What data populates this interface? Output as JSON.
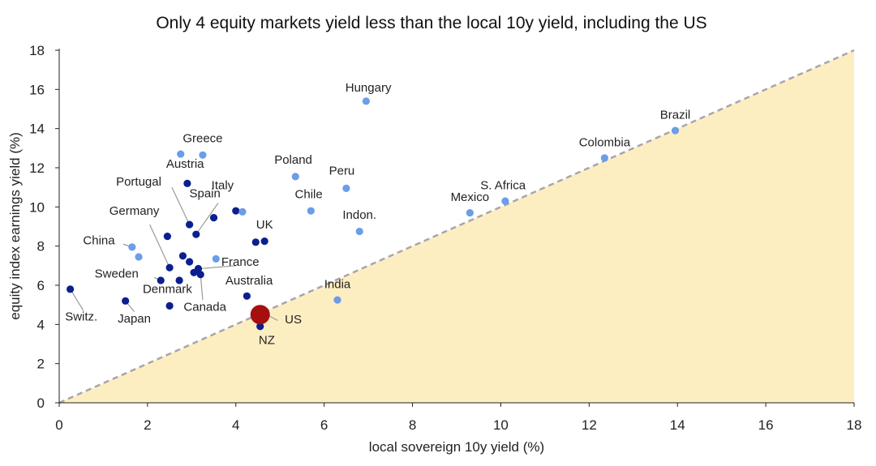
{
  "chart_data": {
    "type": "scatter",
    "title": "Only 4 equity markets yield less than the local 10y yield, including the US",
    "xlabel": "local sovereign 10y yield (%)",
    "ylabel": "equity index earnings yield (%)",
    "xlim": [
      0,
      18
    ],
    "ylim": [
      0,
      18
    ],
    "xticks": [
      "0",
      "2",
      "4",
      "6",
      "8",
      "10",
      "12",
      "14",
      "16",
      "18"
    ],
    "yticks": [
      "0",
      "2",
      "4",
      "6",
      "8",
      "10",
      "12",
      "14",
      "16",
      "18"
    ],
    "grid": false,
    "legend": "none",
    "reference_line": {
      "style": "dashed",
      "color": "#a9a4ae",
      "from": [
        0,
        0
      ],
      "to": [
        18,
        18
      ]
    },
    "shaded_region": {
      "color": "#fdeec2",
      "description": "below the 45-degree line"
    },
    "colors": {
      "developed": "#0b1f8f",
      "emerging": "#6b9de8",
      "highlight": "#a50f0f"
    },
    "points": [
      {
        "x": 0.25,
        "y": 5.8,
        "group": "developed"
      },
      {
        "x": 1.5,
        "y": 5.2,
        "group": "developed"
      },
      {
        "x": 1.65,
        "y": 7.95,
        "group": "emerging"
      },
      {
        "x": 1.8,
        "y": 7.45,
        "group": "emerging"
      },
      {
        "x": 2.3,
        "y": 6.25,
        "group": "developed"
      },
      {
        "x": 2.45,
        "y": 8.5,
        "group": "developed"
      },
      {
        "x": 2.5,
        "y": 6.9,
        "group": "developed"
      },
      {
        "x": 2.5,
        "y": 4.95,
        "group": "developed"
      },
      {
        "x": 2.72,
        "y": 6.25,
        "group": "developed"
      },
      {
        "x": 2.75,
        "y": 12.7,
        "group": "emerging"
      },
      {
        "x": 2.8,
        "y": 7.5,
        "group": "developed"
      },
      {
        "x": 2.9,
        "y": 11.2,
        "group": "developed"
      },
      {
        "x": 2.95,
        "y": 9.1,
        "group": "developed"
      },
      {
        "x": 2.95,
        "y": 7.2,
        "group": "developed"
      },
      {
        "x": 3.05,
        "y": 6.65,
        "group": "developed"
      },
      {
        "x": 3.1,
        "y": 8.6,
        "group": "developed"
      },
      {
        "x": 3.15,
        "y": 6.85,
        "group": "developed"
      },
      {
        "x": 3.2,
        "y": 6.55,
        "group": "developed"
      },
      {
        "x": 3.25,
        "y": 12.65,
        "group": "emerging"
      },
      {
        "x": 3.5,
        "y": 9.45,
        "group": "developed"
      },
      {
        "x": 3.55,
        "y": 7.35,
        "group": "emerging"
      },
      {
        "x": 4.0,
        "y": 9.8,
        "group": "developed"
      },
      {
        "x": 4.15,
        "y": 9.75,
        "group": "emerging"
      },
      {
        "x": 4.25,
        "y": 5.45,
        "group": "developed"
      },
      {
        "x": 4.45,
        "y": 8.2,
        "group": "developed"
      },
      {
        "x": 4.55,
        "y": 3.9,
        "group": "developed"
      },
      {
        "x": 4.55,
        "y": 4.5,
        "group": "highlight"
      },
      {
        "x": 4.65,
        "y": 8.25,
        "group": "developed"
      },
      {
        "x": 5.35,
        "y": 11.55,
        "group": "emerging"
      },
      {
        "x": 5.7,
        "y": 9.8,
        "group": "emerging"
      },
      {
        "x": 6.3,
        "y": 5.25,
        "group": "emerging"
      },
      {
        "x": 6.5,
        "y": 10.95,
        "group": "emerging"
      },
      {
        "x": 6.8,
        "y": 8.75,
        "group": "emerging"
      },
      {
        "x": 6.95,
        "y": 15.4,
        "group": "emerging"
      },
      {
        "x": 9.3,
        "y": 9.7,
        "group": "emerging"
      },
      {
        "x": 10.1,
        "y": 10.3,
        "group": "emerging"
      },
      {
        "x": 12.35,
        "y": 12.5,
        "group": "emerging"
      },
      {
        "x": 13.95,
        "y": 13.9,
        "group": "emerging"
      }
    ],
    "annotations": [
      {
        "text": "Hungary",
        "x": 7.0,
        "y": 15.9
      },
      {
        "text": "Brazil",
        "x": 13.95,
        "y": 14.5
      },
      {
        "text": "Colombia",
        "x": 12.35,
        "y": 13.1
      },
      {
        "text": "Greece",
        "x": 3.25,
        "y": 13.3
      },
      {
        "text": "Austria",
        "x": 2.85,
        "y": 12.0
      },
      {
        "text": "Poland",
        "x": 5.3,
        "y": 12.2
      },
      {
        "text": "Peru",
        "x": 6.4,
        "y": 11.65
      },
      {
        "text": "Portugal",
        "x": 1.8,
        "y": 11.1
      },
      {
        "text": "Italy",
        "x": 3.7,
        "y": 10.9
      },
      {
        "text": "S. Africa",
        "x": 10.05,
        "y": 10.9
      },
      {
        "text": "Spain",
        "x": 3.3,
        "y": 10.5
      },
      {
        "text": "Chile",
        "x": 5.65,
        "y": 10.45
      },
      {
        "text": "Mexico",
        "x": 9.3,
        "y": 10.3
      },
      {
        "text": "Germany",
        "x": 1.7,
        "y": 9.6
      },
      {
        "text": "Indon.",
        "x": 6.8,
        "y": 9.4
      },
      {
        "text": "UK",
        "x": 4.65,
        "y": 8.9
      },
      {
        "text": "China",
        "x": 0.9,
        "y": 8.1
      },
      {
        "text": "France",
        "x": 4.1,
        "y": 7.0
      },
      {
        "text": "Sweden",
        "x": 1.3,
        "y": 6.4
      },
      {
        "text": "Australia",
        "x": 4.3,
        "y": 6.05
      },
      {
        "text": "India",
        "x": 6.3,
        "y": 5.85
      },
      {
        "text": "Denmark",
        "x": 2.45,
        "y": 5.6
      },
      {
        "text": "Canada",
        "x": 3.3,
        "y": 4.7
      },
      {
        "text": "Switz.",
        "x": 0.5,
        "y": 4.2
      },
      {
        "text": "Japan",
        "x": 1.7,
        "y": 4.1
      },
      {
        "text": "US",
        "x": 5.3,
        "y": 4.05
      },
      {
        "text": "NZ",
        "x": 4.7,
        "y": 3.0
      }
    ],
    "leaders": [
      {
        "from": [
          2.55,
          11.0
        ],
        "to": [
          2.95,
          9.1
        ]
      },
      {
        "from": [
          3.6,
          10.2
        ],
        "to": [
          3.1,
          8.6
        ]
      },
      {
        "from": [
          2.05,
          9.1
        ],
        "to": [
          2.5,
          6.9
        ]
      },
      {
        "from": [
          1.45,
          8.1
        ],
        "to": [
          1.65,
          7.95
        ]
      },
      {
        "from": [
          4.0,
          7.0
        ],
        "to": [
          3.2,
          6.85
        ]
      },
      {
        "from": [
          2.15,
          6.4
        ],
        "to": [
          2.3,
          6.25
        ]
      },
      {
        "from": [
          3.25,
          5.25
        ],
        "to": [
          3.2,
          6.55
        ]
      },
      {
        "from": [
          0.55,
          4.7
        ],
        "to": [
          0.25,
          5.8
        ]
      },
      {
        "from": [
          1.7,
          4.65
        ],
        "to": [
          1.5,
          5.2
        ]
      },
      {
        "from": [
          4.95,
          4.2
        ],
        "to": [
          4.7,
          4.5
        ]
      }
    ]
  }
}
